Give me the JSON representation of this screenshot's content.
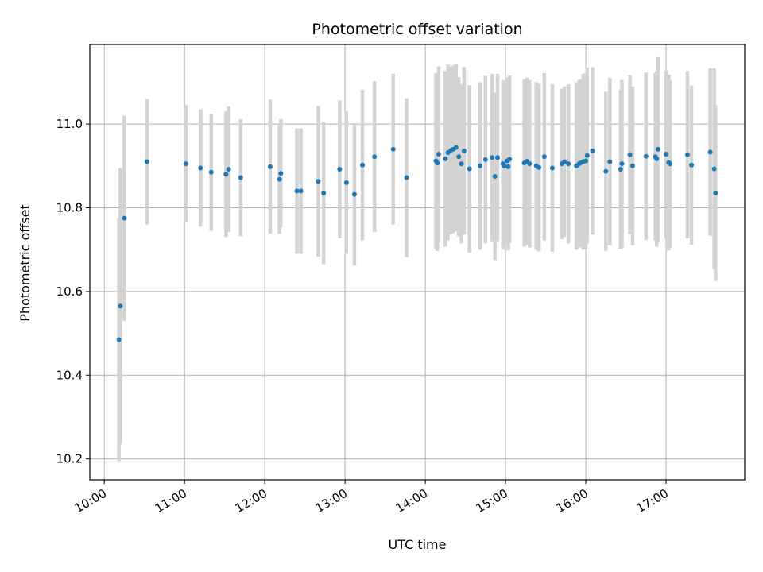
{
  "chart_data": {
    "type": "scatter",
    "title": "Photometric offset variation",
    "xlabel": "UTC time",
    "ylabel": "Photometric offset",
    "x_ticks": [
      "10:00",
      "11:00",
      "12:00",
      "13:00",
      "14:00",
      "15:00",
      "16:00",
      "17:00"
    ],
    "y_ticks": [
      "10.2",
      "10.4",
      "10.6",
      "10.8",
      "11.0"
    ],
    "xlim_hours": [
      9.82,
      17.98
    ],
    "ylim": [
      10.15,
      11.19
    ],
    "grid": true,
    "colors": {
      "point": "#1f77b4",
      "errorbar": "#d3d3d3",
      "grid": "#b0b0b0"
    },
    "series": [
      {
        "x": [
          10.183,
          10.2,
          10.25,
          10.533,
          11.017,
          11.2,
          11.333,
          11.517,
          11.55,
          11.7,
          12.067,
          12.183,
          12.2,
          12.4,
          12.45,
          12.667,
          12.733,
          12.933,
          13.017,
          13.117,
          13.217,
          13.367,
          13.6,
          13.767,
          14.133,
          14.15,
          14.167,
          14.25,
          14.283,
          14.317,
          14.35,
          14.383,
          14.417,
          14.45,
          14.483,
          14.55,
          14.683,
          14.75,
          14.833,
          14.867,
          14.9,
          14.967,
          14.983,
          15.017,
          15.033,
          15.05,
          15.233,
          15.267,
          15.3,
          15.383,
          15.417,
          15.483,
          15.583,
          15.7,
          15.733,
          15.783,
          15.883,
          15.917,
          15.933,
          15.967,
          16.0,
          16.017,
          16.083,
          16.25,
          16.3,
          16.433,
          16.45,
          16.55,
          16.583,
          16.75,
          16.867,
          16.883,
          16.9,
          17.0,
          17.033,
          17.05,
          17.267,
          17.317,
          17.55,
          17.6,
          17.617
        ],
        "y": [
          10.485,
          10.565,
          10.775,
          10.91,
          10.905,
          10.895,
          10.885,
          10.88,
          10.892,
          10.872,
          10.898,
          10.868,
          10.882,
          10.84,
          10.84,
          10.863,
          10.835,
          10.892,
          10.86,
          10.832,
          10.902,
          10.922,
          10.94,
          10.872,
          10.912,
          10.907,
          10.928,
          10.917,
          10.932,
          10.937,
          10.94,
          10.944,
          10.922,
          10.905,
          10.936,
          10.893,
          10.9,
          10.915,
          10.92,
          10.875,
          10.92,
          10.905,
          10.9,
          10.912,
          10.898,
          10.916,
          10.907,
          10.911,
          10.905,
          10.9,
          10.896,
          10.922,
          10.895,
          10.905,
          10.91,
          10.905,
          10.9,
          10.905,
          10.907,
          10.91,
          10.912,
          10.925,
          10.936,
          10.887,
          10.91,
          10.892,
          10.905,
          10.927,
          10.9,
          10.923,
          10.922,
          10.917,
          10.94,
          10.928,
          10.908,
          10.905,
          10.927,
          10.902,
          10.933,
          10.893,
          10.835
        ],
        "err": [
          0.29,
          0.33,
          0.245,
          0.15,
          0.14,
          0.14,
          0.14,
          0.15,
          0.15,
          0.14,
          0.16,
          0.13,
          0.13,
          0.15,
          0.15,
          0.18,
          0.17,
          0.165,
          0.17,
          0.17,
          0.18,
          0.18,
          0.18,
          0.19,
          0.21,
          0.21,
          0.21,
          0.21,
          0.21,
          0.2,
          0.2,
          0.2,
          0.19,
          0.19,
          0.2,
          0.2,
          0.2,
          0.2,
          0.2,
          0.2,
          0.2,
          0.2,
          0.2,
          0.2,
          0.2,
          0.2,
          0.2,
          0.2,
          0.2,
          0.2,
          0.2,
          0.2,
          0.2,
          0.18,
          0.18,
          0.19,
          0.2,
          0.2,
          0.2,
          0.21,
          0.21,
          0.21,
          0.2,
          0.19,
          0.2,
          0.19,
          0.2,
          0.19,
          0.19,
          0.2,
          0.2,
          0.21,
          0.22,
          0.2,
          0.21,
          0.2,
          0.2,
          0.19,
          0.2,
          0.24,
          0.21
        ]
      }
    ]
  }
}
